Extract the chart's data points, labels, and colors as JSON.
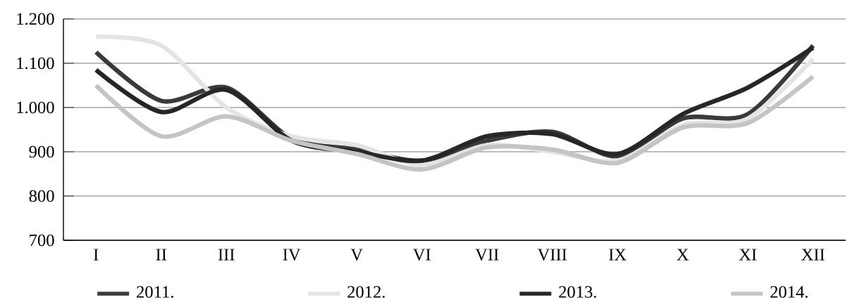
{
  "chart_data": {
    "type": "line",
    "categories": [
      "I",
      "II",
      "III",
      "IV",
      "V",
      "VI",
      "VII",
      "VIII",
      "IX",
      "X",
      "XI",
      "XII"
    ],
    "series": [
      {
        "name": "2011.",
        "color": "#3a3a3a",
        "values": [
          1125,
          1015,
          1045,
          930,
          905,
          880,
          925,
          945,
          890,
          975,
          985,
          1140
        ]
      },
      {
        "name": "2012.",
        "color": "#e4e4e4",
        "values": [
          1160,
          1140,
          1000,
          935,
          915,
          870,
          915,
          900,
          880,
          960,
          975,
          1110
        ]
      },
      {
        "name": "2013.",
        "color": "#262626",
        "values": [
          1085,
          990,
          1040,
          925,
          900,
          880,
          935,
          940,
          895,
          985,
          1045,
          1135
        ]
      },
      {
        "name": "2014.",
        "color": "#c4c4c4",
        "values": [
          1050,
          935,
          980,
          925,
          895,
          860,
          910,
          905,
          875,
          955,
          965,
          1070
        ]
      }
    ],
    "ylim": [
      700,
      1200
    ],
    "yticks": [
      {
        "value": 700,
        "label": "700"
      },
      {
        "value": 800,
        "label": "800"
      },
      {
        "value": 900,
        "label": "900"
      },
      {
        "value": 1000,
        "label": "1.000"
      },
      {
        "value": 1100,
        "label": "1.100"
      },
      {
        "value": 1200,
        "label": "1.200"
      }
    ],
    "grid": "y",
    "legend": "bottom",
    "marker": "none",
    "line_style": "solid"
  }
}
